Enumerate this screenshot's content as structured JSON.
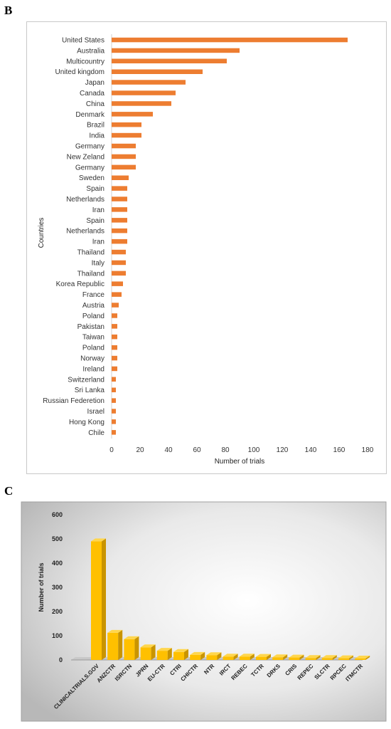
{
  "panels": {
    "b_letter": "B",
    "c_letter": "C"
  },
  "chart_data": [
    {
      "type": "bar",
      "orientation": "horizontal",
      "xlabel": "Number of trials",
      "ylabel": "Countries",
      "xlim": [
        0,
        180
      ],
      "xticks": [
        0,
        20,
        40,
        60,
        80,
        100,
        120,
        140,
        160,
        180
      ],
      "bar_color": "#ed7d31",
      "categories": [
        "United States",
        "Australia",
        "Multicountry",
        "United kingdom",
        "Japan",
        "Canada",
        "China",
        "Denmark",
        "Brazil",
        "India",
        "Germany",
        "New Zeland",
        "Germany",
        "Sweden",
        "Spain",
        "Netherlands",
        "Iran",
        "Spain",
        "Netherlands",
        "Iran",
        "Thailand",
        "Italy",
        "Thailand",
        "Korea Republic",
        "France",
        "Austria",
        "Poland",
        "Pakistan",
        "Taiwan",
        "Poland",
        "Norway",
        "Ireland",
        "Switzerland",
        "Sri Lanka",
        "Russian Federetion",
        "Israel",
        "Hong Kong",
        "Chile"
      ],
      "values": [
        166,
        90,
        81,
        64,
        52,
        45,
        42,
        29,
        21,
        21,
        17,
        17,
        17,
        12,
        11,
        11,
        11,
        11,
        11,
        11,
        10,
        10,
        10,
        8,
        7,
        5,
        4,
        4,
        4,
        4,
        4,
        4,
        3,
        3,
        3,
        3,
        3,
        3
      ],
      "grid": false
    },
    {
      "type": "bar",
      "style": "3d",
      "ylabel": "Number of trials",
      "xlabel": "",
      "ylim": [
        0,
        600
      ],
      "yticks": [
        0,
        100,
        200,
        300,
        400,
        500,
        600
      ],
      "bar_color": "#ffc000",
      "categories": [
        "CLINICALTRIALS.GOV",
        "ANZCTR",
        "ISRCTN",
        "JPRN",
        "EU-CTR",
        "CTRI",
        "CHICTR",
        "NTR",
        "IRCT",
        "REBEC",
        "TCTR",
        "DRKS",
        "CRIS",
        "REPEC",
        "SLCTR",
        "RPCEC",
        "ITMCTR"
      ],
      "values": [
        490,
        112,
        86,
        52,
        38,
        33,
        21,
        20,
        14,
        14,
        13,
        11,
        10,
        8,
        8,
        7,
        6
      ],
      "grid": false
    }
  ]
}
